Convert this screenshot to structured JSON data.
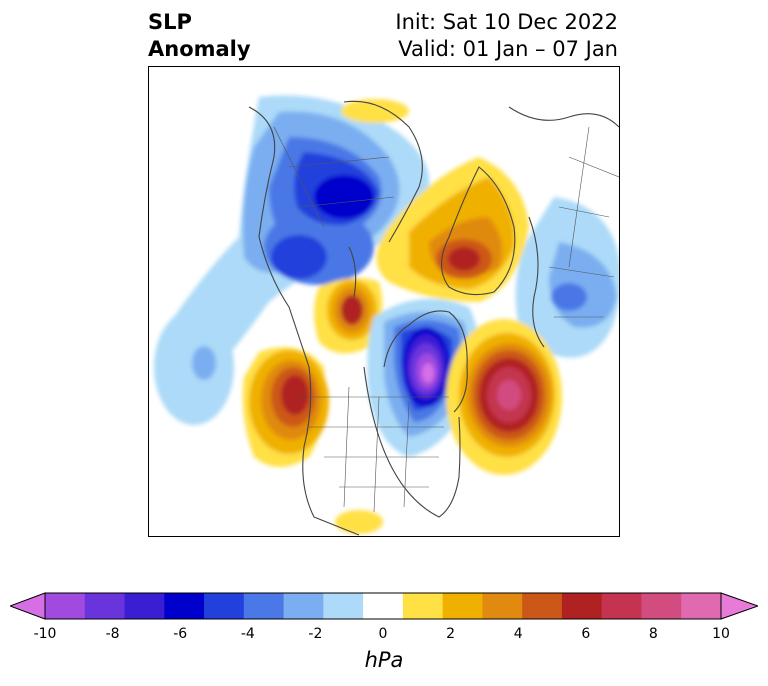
{
  "title": {
    "left_line1": "SLP",
    "left_line2": "Anomaly",
    "right_line1": "Init: Sat 10 Dec 2022",
    "right_line2": "Valid: 01 Jan – 07 Jan"
  },
  "colorbar": {
    "unit": "hPa",
    "ticks": [
      "-10",
      "-8",
      "-6",
      "-4",
      "-2",
      "0",
      "2",
      "4",
      "6",
      "8",
      "10"
    ],
    "colors": [
      "#d66fe6",
      "#a04ae0",
      "#6a34dc",
      "#3a1ed4",
      "#0000cc",
      "#2240dc",
      "#4a78e6",
      "#7aaef0",
      "#acdaf8",
      "#ffffff",
      "#ffe045",
      "#f0b000",
      "#e08a10",
      "#cc5818",
      "#b02222",
      "#c43450",
      "#d24c80",
      "#e06ab0",
      "#e87ad8"
    ]
  }
}
